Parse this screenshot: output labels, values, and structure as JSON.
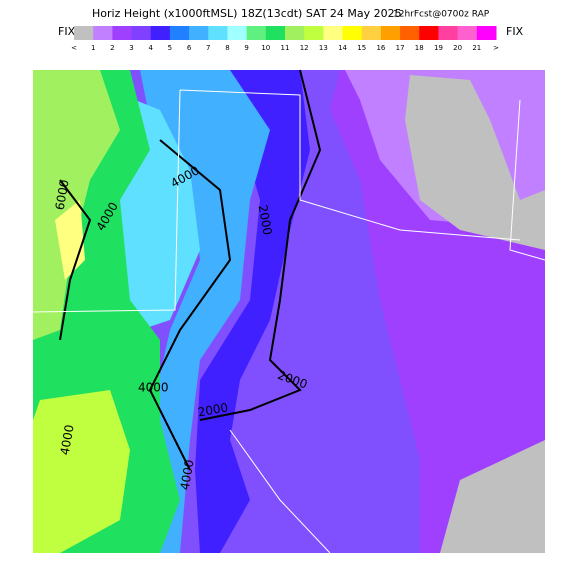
{
  "header": {
    "title": "Horiz Height (x1000ftMSL) 18Z(13cdt) SAT 24 May 2025",
    "subtitle": "12hrFcst@0700z RAP"
  },
  "colorbar": {
    "left_label": "FIX",
    "right_label": "FIX",
    "labels": [
      "<",
      "1",
      "2",
      "3",
      "4",
      "5",
      "6",
      "7",
      "8",
      "9",
      "10",
      "11",
      "12",
      "13",
      "14",
      "15",
      "16",
      "17",
      "18",
      "19",
      "20",
      "21",
      ">"
    ],
    "colors": [
      "#c0c0c0",
      "#c080ff",
      "#a040ff",
      "#8040ff",
      "#4020ff",
      "#2080ff",
      "#40b0ff",
      "#60e0ff",
      "#a0ffff",
      "#60f080",
      "#20e060",
      "#a0f060",
      "#c0ff40",
      "#ffff80",
      "#ffff00",
      "#ffd040",
      "#ffa000",
      "#ff6000",
      "#ff0000",
      "#ff40a0",
      "#ff60d0",
      "#ff00ff"
    ]
  },
  "map": {
    "contour_labels": [
      "6000",
      "4000",
      "4000",
      "2000",
      "2000",
      "4000",
      "2000",
      "4000",
      "4000"
    ]
  }
}
